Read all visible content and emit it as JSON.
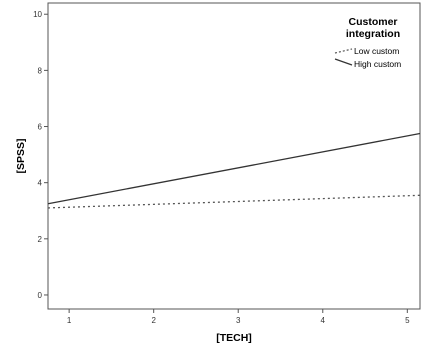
{
  "chart_data": {
    "type": "line",
    "xlabel": "[TECH]",
    "ylabel": "[SPSS]",
    "xlim": [
      0.75,
      5.15
    ],
    "ylim": [
      -0.5,
      10.4
    ],
    "x_ticks": [
      1,
      2,
      3,
      4,
      5
    ],
    "y_ticks": [
      0,
      2,
      4,
      6,
      8,
      10
    ],
    "grid": false,
    "legend": {
      "title_line1": "Customer",
      "title_line2": "integration",
      "placement": "top-right"
    },
    "series": [
      {
        "name": "Low custom",
        "style": "dotted",
        "color": "#555555",
        "x": [
          0.75,
          5.15
        ],
        "y": [
          3.1,
          3.55
        ]
      },
      {
        "name": "High custom",
        "style": "solid",
        "color": "#333333",
        "x": [
          0.75,
          5.15
        ],
        "y": [
          3.25,
          5.75
        ]
      }
    ]
  }
}
